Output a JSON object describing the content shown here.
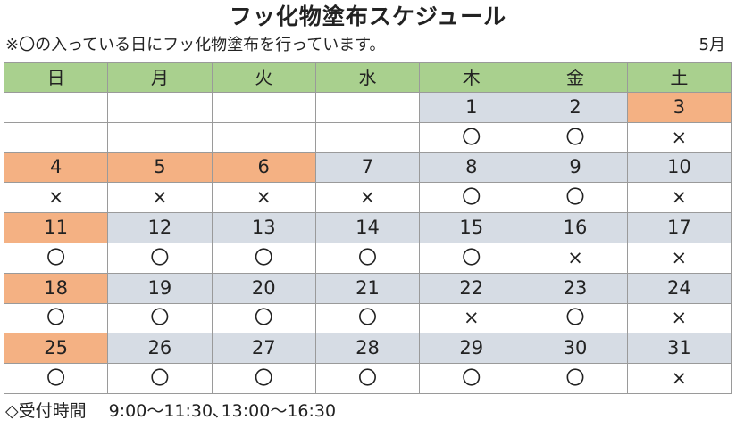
{
  "title": "フッ化物塗布スケジュール",
  "note": "※〇の入っている日にフッ化物塗布を行っています。",
  "month": "5月",
  "colors": {
    "header": "#a9d08e",
    "business_day": "#d6dce4",
    "holiday": "#f4b183"
  },
  "weekdays": [
    "日",
    "月",
    "火",
    "水",
    "木",
    "金",
    "土"
  ],
  "weeks": [
    {
      "dates": [
        "",
        "",
        "",
        "",
        "1",
        "2",
        "3"
      ],
      "types": [
        "blank",
        "blank",
        "blank",
        "blank",
        "business",
        "business",
        "holiday"
      ],
      "marks": [
        "",
        "",
        "",
        "",
        "〇",
        "〇",
        "×"
      ]
    },
    {
      "dates": [
        "4",
        "5",
        "6",
        "7",
        "8",
        "9",
        "10"
      ],
      "types": [
        "holiday",
        "holiday",
        "holiday",
        "business",
        "business",
        "business",
        "business"
      ],
      "marks": [
        "×",
        "×",
        "×",
        "×",
        "〇",
        "〇",
        "×"
      ]
    },
    {
      "dates": [
        "11",
        "12",
        "13",
        "14",
        "15",
        "16",
        "17"
      ],
      "types": [
        "holiday",
        "business",
        "business",
        "business",
        "business",
        "business",
        "business"
      ],
      "marks": [
        "〇",
        "〇",
        "〇",
        "〇",
        "〇",
        "×",
        "×"
      ]
    },
    {
      "dates": [
        "18",
        "19",
        "20",
        "21",
        "22",
        "23",
        "24"
      ],
      "types": [
        "holiday",
        "business",
        "business",
        "business",
        "business",
        "business",
        "business"
      ],
      "marks": [
        "〇",
        "〇",
        "〇",
        "〇",
        "×",
        "〇",
        "×"
      ]
    },
    {
      "dates": [
        "25",
        "26",
        "27",
        "28",
        "29",
        "30",
        "31"
      ],
      "types": [
        "holiday",
        "business",
        "business",
        "business",
        "business",
        "business",
        "business"
      ],
      "marks": [
        "〇",
        "〇",
        "〇",
        "〇",
        "〇",
        "〇",
        "×"
      ]
    }
  ],
  "footer": "◇受付時間　 9:00～11:30､13:00～16:30"
}
